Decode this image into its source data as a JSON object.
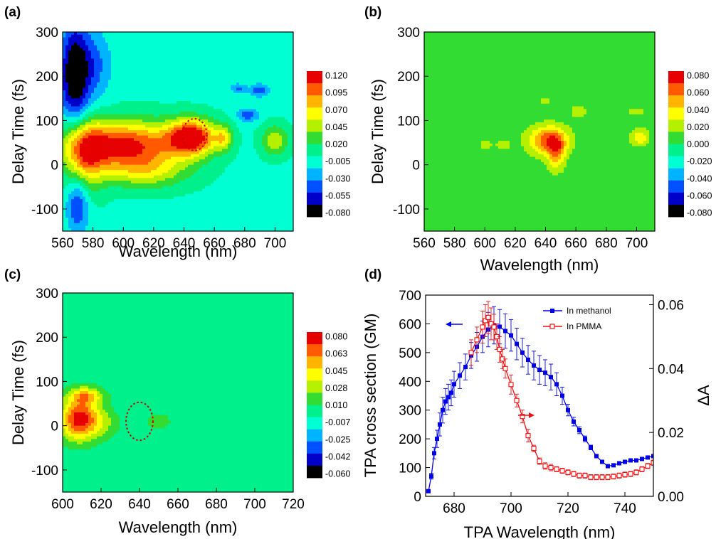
{
  "colormap": [
    "#000000",
    "#0000c8",
    "#0050ff",
    "#00b4ff",
    "#00ffd2",
    "#00f08c",
    "#32dc32",
    "#b4f000",
    "#ffff00",
    "#ffb400",
    "#ff5a00",
    "#e60000"
  ],
  "chart_data": [
    {
      "panel_label": "(a)",
      "type": "heatmap",
      "xlabel": "Wavelength (nm)",
      "ylabel": "Delay Time (fs)",
      "xlim": [
        560,
        712
      ],
      "ylim": [
        -150,
        300
      ],
      "xticks": [
        "560",
        "580",
        "600",
        "620",
        "640",
        "660",
        "680",
        "700"
      ],
      "yticks": [
        "-100",
        "0",
        "100",
        "200",
        "300"
      ],
      "colorbar": [
        "0.120",
        "0.095",
        "0.070",
        "0.045",
        "0.020",
        "-0.005",
        "-0.030",
        "-0.055",
        "-0.080"
      ],
      "zlim": [
        -0.08,
        0.12
      ],
      "background": 0.0,
      "features": [
        {
          "x": 600,
          "y": 45,
          "sx": 26,
          "sy": 38,
          "z": 0.11
        },
        {
          "x": 645,
          "y": 62,
          "sx": 11,
          "sy": 28,
          "z": 0.12
        },
        {
          "x": 575,
          "y": 20,
          "sx": 9,
          "sy": 55,
          "z": 0.065
        },
        {
          "x": 615,
          "y": -15,
          "sx": 20,
          "sy": 28,
          "z": 0.045
        },
        {
          "x": 568,
          "y": 205,
          "sx": 7,
          "sy": 80,
          "z": -0.085
        },
        {
          "x": 582,
          "y": 225,
          "sx": 8,
          "sy": 55,
          "z": -0.03
        },
        {
          "x": 570,
          "y": -90,
          "sx": 5,
          "sy": 45,
          "z": -0.05
        },
        {
          "x": 682,
          "y": 112,
          "sx": 5,
          "sy": 10,
          "z": -0.045
        },
        {
          "x": 690,
          "y": 168,
          "sx": 4,
          "sy": 10,
          "z": -0.045
        },
        {
          "x": 676,
          "y": 172,
          "sx": 4,
          "sy": 8,
          "z": -0.035
        },
        {
          "x": 666,
          "y": 60,
          "sx": 4,
          "sy": 20,
          "z": 0.05
        },
        {
          "x": 700,
          "y": 55,
          "sx": 6,
          "sy": 24,
          "z": 0.05
        }
      ],
      "annotation_circle": {
        "x": 647,
        "y": 68,
        "rx": 8,
        "ry": 36
      }
    },
    {
      "panel_label": "(b)",
      "type": "heatmap",
      "xlabel": "Wavelength (nm)",
      "ylabel": "Delay Time (fs)",
      "xlim": [
        560,
        712
      ],
      "ylim": [
        -150,
        300
      ],
      "xticks": [
        "560",
        "580",
        "600",
        "620",
        "640",
        "660",
        "680",
        "700"
      ],
      "yticks": [
        "-100",
        "0",
        "100",
        "200",
        "300"
      ],
      "colorbar": [
        "0.080",
        "0.060",
        "0.040",
        "0.020",
        "0.000",
        "-0.020",
        "-0.040",
        "-0.060",
        "-0.080"
      ],
      "zlim": [
        -0.08,
        0.08
      ],
      "background": 0.006,
      "features": [
        {
          "x": 642,
          "y": 55,
          "sx": 9,
          "sy": 22,
          "z": 0.064
        },
        {
          "x": 647,
          "y": 25,
          "sx": 4,
          "sy": 26,
          "z": 0.045
        },
        {
          "x": 702,
          "y": 62,
          "sx": 4,
          "sy": 13,
          "z": 0.04
        },
        {
          "x": 662,
          "y": 120,
          "sx": 4,
          "sy": 10,
          "z": 0.022
        },
        {
          "x": 700,
          "y": 120,
          "sx": 5,
          "sy": 8,
          "z": 0.018
        },
        {
          "x": 612,
          "y": 45,
          "sx": 4,
          "sy": 10,
          "z": 0.018
        },
        {
          "x": 600,
          "y": 45,
          "sx": 4,
          "sy": 10,
          "z": 0.016
        },
        {
          "x": 640,
          "y": 145,
          "sx": 4,
          "sy": 8,
          "z": 0.016
        }
      ]
    },
    {
      "panel_label": "(c)",
      "type": "heatmap",
      "xlabel": "Wavelength (nm)",
      "ylabel": "Delay Time (fs)",
      "xlim": [
        600,
        720
      ],
      "ylim": [
        -150,
        300
      ],
      "xticks": [
        "600",
        "620",
        "640",
        "660",
        "680",
        "700",
        "720"
      ],
      "yticks": [
        "-100",
        "0",
        "100",
        "200",
        "300"
      ],
      "colorbar": [
        "0.080",
        "0.063",
        "0.045",
        "0.028",
        "0.010",
        "-0.007",
        "-0.025",
        "-0.042",
        "-0.060"
      ],
      "zlim": [
        -0.06,
        0.08
      ],
      "background": 0.004,
      "features": [
        {
          "x": 609,
          "y": 15,
          "sx": 7,
          "sy": 32,
          "z": 0.078
        },
        {
          "x": 612,
          "y": 68,
          "sx": 6,
          "sy": 13,
          "z": 0.042
        },
        {
          "x": 622,
          "y": 5,
          "sx": 5,
          "sy": 22,
          "z": 0.018
        },
        {
          "x": 650,
          "y": 10,
          "sx": 10,
          "sy": 30,
          "z": 0.011
        },
        {
          "x": 695,
          "y": 15,
          "sx": 12,
          "sy": 25,
          "z": 0.009
        }
      ],
      "annotation_circle": {
        "x": 640,
        "y": 10,
        "rx": 7,
        "ry": 43
      }
    },
    {
      "panel_label": "(d)",
      "type": "scatter",
      "xlabel": "TPA Wavelength (nm)",
      "ylabel": "TPA cross section (GM)",
      "y2label": "ΔA",
      "xlim": [
        670,
        750
      ],
      "ylim": [
        0,
        700
      ],
      "y2lim": [
        0,
        0.063
      ],
      "xticks": [
        "680",
        "700",
        "720",
        "740"
      ],
      "yticks": [
        "0",
        "100",
        "200",
        "300",
        "400",
        "500",
        "600",
        "700"
      ],
      "y2ticks": [
        "0.00",
        "0.02",
        "0.04",
        "0.06"
      ],
      "legend_position": "top-right",
      "series": [
        {
          "name": "In methanol",
          "color": "#0000ee",
          "marker": "filled-square",
          "axis": "left",
          "x": [
            671,
            672,
            673,
            674,
            675,
            676,
            677,
            678,
            679,
            680,
            682,
            684,
            686,
            688,
            690,
            692,
            694,
            696,
            698,
            700,
            702,
            704,
            706,
            708,
            710,
            712,
            714,
            716,
            718,
            720,
            722,
            724,
            726,
            728,
            730,
            732,
            734,
            736,
            738,
            740,
            742,
            744,
            746,
            748,
            750
          ],
          "y": [
            18,
            70,
            150,
            200,
            250,
            300,
            330,
            345,
            360,
            390,
            420,
            450,
            490,
            520,
            555,
            580,
            595,
            590,
            575,
            560,
            530,
            500,
            475,
            455,
            440,
            430,
            415,
            390,
            350,
            300,
            260,
            230,
            200,
            170,
            140,
            120,
            105,
            108,
            115,
            120,
            125,
            125,
            130,
            135,
            140
          ],
          "err": [
            5,
            10,
            20,
            30,
            40,
            45,
            45,
            45,
            45,
            45,
            45,
            45,
            45,
            50,
            55,
            60,
            65,
            60,
            60,
            55,
            55,
            50,
            50,
            50,
            50,
            45,
            45,
            40,
            30,
            20,
            15,
            12,
            10,
            8,
            6,
            5,
            5,
            5,
            5,
            5,
            5,
            5,
            5,
            5,
            5
          ]
        },
        {
          "name": "In PMMA",
          "color": "#ee1111",
          "marker": "open-square",
          "axis": "right",
          "x": [
            686,
            688,
            690,
            691,
            692,
            693,
            694,
            695,
            696,
            697,
            698,
            700,
            702,
            704,
            706,
            708,
            710,
            712,
            714,
            716,
            718,
            720,
            722,
            724,
            726,
            728,
            730,
            732,
            734,
            736,
            738,
            740,
            742,
            744,
            746,
            748,
            750
          ],
          "y": [
            0.045,
            0.049,
            0.053,
            0.055,
            0.056,
            0.054,
            0.053,
            0.05,
            0.046,
            0.043,
            0.04,
            0.035,
            0.03,
            0.025,
            0.019,
            0.015,
            0.011,
            0.0095,
            0.009,
            0.0085,
            0.008,
            0.0075,
            0.007,
            0.0065,
            0.0065,
            0.006,
            0.006,
            0.006,
            0.006,
            0.0062,
            0.0065,
            0.0068,
            0.007,
            0.0075,
            0.0085,
            0.0095,
            0.0105
          ],
          "err": [
            0.004,
            0.004,
            0.005,
            0.005,
            0.005,
            0.005,
            0.004,
            0.004,
            0.004,
            0.003,
            0.003,
            0.003,
            0.002,
            0.002,
            0.002,
            0.001,
            0.001,
            0.001,
            0.001,
            0.0008,
            0.0008,
            0.0008,
            0.0008,
            0.0008,
            0.0008,
            0.0008,
            0.0008,
            0.0008,
            0.0008,
            0.0008,
            0.0008,
            0.0008,
            0.0008,
            0.0008,
            0.0008,
            0.0008,
            0.0008
          ]
        }
      ]
    }
  ]
}
